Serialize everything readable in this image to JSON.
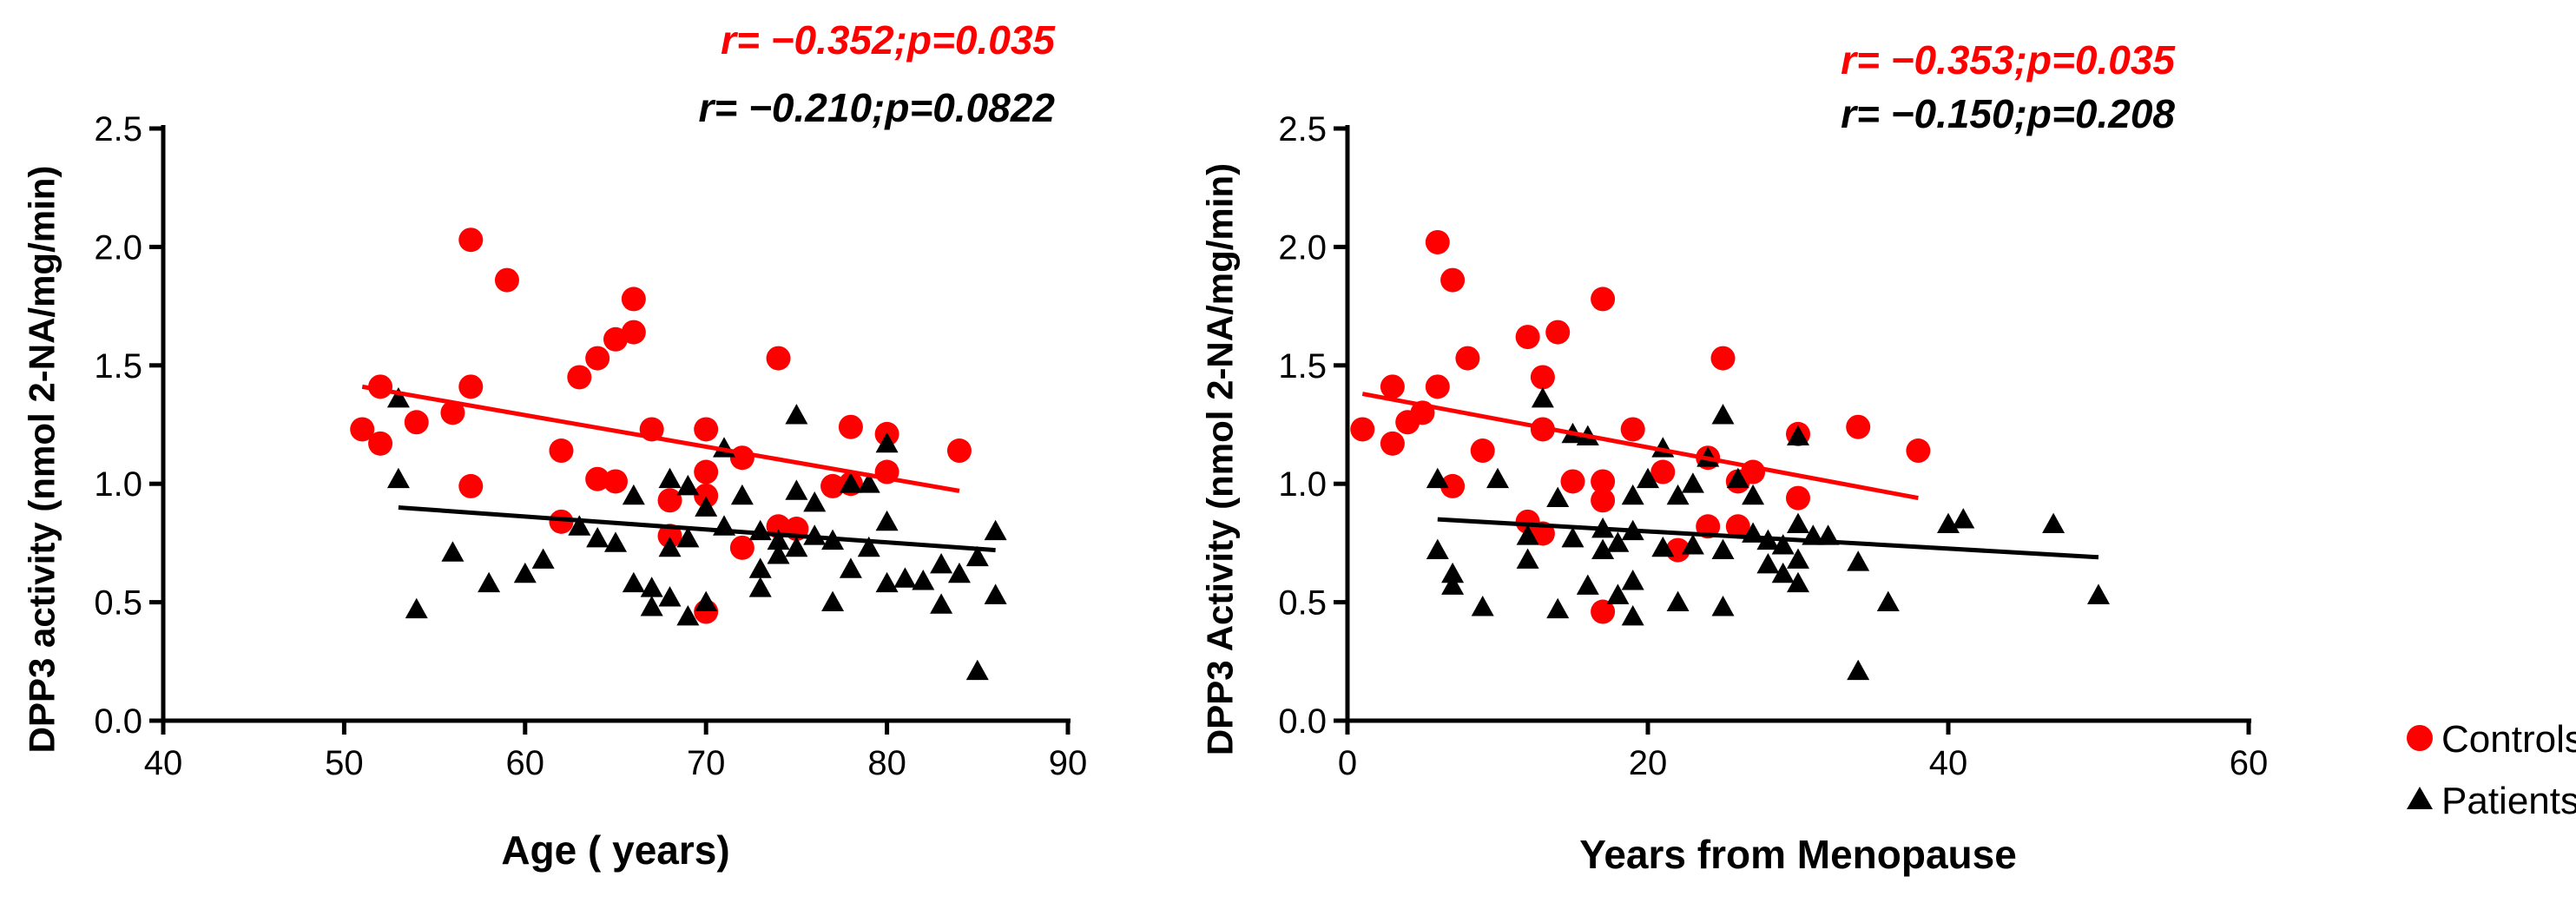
{
  "legend": {
    "controls_label": "Controls",
    "patients_label": "Patients",
    "controls_color": "#ff0000",
    "patients_color": "#000000"
  },
  "chart_data": [
    {
      "type": "scatter",
      "xlabel": "Age ( years)",
      "ylabel": "DPP3 activity (nmol 2-NA/mg/min)",
      "xlim": [
        40,
        90
      ],
      "ylim": [
        0,
        2.5
      ],
      "xticks": [
        "40",
        "50",
        "60",
        "70",
        "80",
        "90"
      ],
      "yticks": [
        "0.0",
        "0.5",
        "1.0",
        "1.5",
        "2.0",
        "2.5"
      ],
      "annotations": [
        {
          "text": "r= −0.352;p=0.035",
          "color": "#ff0000"
        },
        {
          "text": "r= −0.210;p=0.0822",
          "color": "#000000"
        }
      ],
      "series": [
        {
          "name": "Controls",
          "color": "#ff0000",
          "marker": "circle",
          "points": [
            [
              51,
              1.23
            ],
            [
              52,
              1.17
            ],
            [
              52,
              1.41
            ],
            [
              54,
              1.26
            ],
            [
              56,
              1.3
            ],
            [
              57,
              2.03
            ],
            [
              57,
              1.41
            ],
            [
              57,
              0.99
            ],
            [
              59,
              1.86
            ],
            [
              62,
              1.14
            ],
            [
              62,
              0.84
            ],
            [
              63,
              1.45
            ],
            [
              64,
              1.53
            ],
            [
              64,
              1.02
            ],
            [
              65,
              1.61
            ],
            [
              65,
              1.01
            ],
            [
              66,
              1.64
            ],
            [
              66,
              1.78
            ],
            [
              67,
              1.23
            ],
            [
              68,
              0.93
            ],
            [
              68,
              0.78
            ],
            [
              70,
              1.23
            ],
            [
              70,
              1.05
            ],
            [
              70,
              0.95
            ],
            [
              70,
              0.46
            ],
            [
              72,
              1.11
            ],
            [
              72,
              0.73
            ],
            [
              74,
              1.53
            ],
            [
              74,
              0.82
            ],
            [
              75,
              0.81
            ],
            [
              77,
              0.99
            ],
            [
              78,
              1.24
            ],
            [
              78,
              1.0
            ],
            [
              80,
              1.21
            ],
            [
              80,
              1.05
            ],
            [
              84,
              1.14
            ]
          ]
        },
        {
          "name": "Patients",
          "color": "#000000",
          "marker": "triangle",
          "points": [
            [
              53,
              1.36
            ],
            [
              53,
              1.02
            ],
            [
              54,
              0.47
            ],
            [
              56,
              0.71
            ],
            [
              58,
              0.58
            ],
            [
              60,
              0.62
            ],
            [
              61,
              0.68
            ],
            [
              63,
              0.82
            ],
            [
              64,
              0.77
            ],
            [
              65,
              0.75
            ],
            [
              66,
              0.58
            ],
            [
              66,
              0.95
            ],
            [
              67,
              0.56
            ],
            [
              67,
              0.48
            ],
            [
              68,
              0.52
            ],
            [
              68,
              1.02
            ],
            [
              68,
              0.73
            ],
            [
              69,
              0.77
            ],
            [
              69,
              0.44
            ],
            [
              69,
              0.99
            ],
            [
              70,
              0.9
            ],
            [
              70,
              0.5
            ],
            [
              71,
              1.15
            ],
            [
              71,
              0.82
            ],
            [
              72,
              0.95
            ],
            [
              73,
              0.56
            ],
            [
              73,
              0.8
            ],
            [
              73,
              0.64
            ],
            [
              74,
              0.7
            ],
            [
              74,
              0.76
            ],
            [
              75,
              0.73
            ],
            [
              75,
              0.97
            ],
            [
              75,
              1.29
            ],
            [
              76,
              0.92
            ],
            [
              76,
              0.78
            ],
            [
              77,
              0.76
            ],
            [
              77,
              0.5
            ],
            [
              78,
              1.0
            ],
            [
              78,
              0.64
            ],
            [
              79,
              0.73
            ],
            [
              79,
              1.0
            ],
            [
              80,
              0.84
            ],
            [
              80,
              0.58
            ],
            [
              80,
              1.17
            ],
            [
              81,
              0.6
            ],
            [
              82,
              0.59
            ],
            [
              83,
              0.49
            ],
            [
              83,
              0.66
            ],
            [
              84,
              0.62
            ],
            [
              85,
              0.69
            ],
            [
              85,
              0.21
            ],
            [
              86,
              0.8
            ],
            [
              86,
              0.53
            ]
          ]
        }
      ],
      "fit_lines": [
        {
          "series": "Controls",
          "color": "#ff0000",
          "x": [
            51,
            84
          ],
          "y": [
            1.41,
            0.97
          ]
        },
        {
          "series": "Patients",
          "color": "#000000",
          "x": [
            53,
            86
          ],
          "y": [
            0.9,
            0.72
          ]
        }
      ]
    },
    {
      "type": "scatter",
      "xlabel": "Years from Menopause",
      "ylabel": "DPP3 Activity (nmol 2-NA/mg/min)",
      "xlim": [
        0,
        60
      ],
      "ylim": [
        0,
        2.5
      ],
      "xticks": [
        "0",
        "20",
        "40",
        "60"
      ],
      "yticks": [
        "0.0",
        "0.5",
        "1.0",
        "1.5",
        "2.0",
        "2.5"
      ],
      "annotations": [
        {
          "text": "r= −0.353;p=0.035",
          "color": "#ff0000"
        },
        {
          "text": "r= −0.150;p=0.208",
          "color": "#000000"
        }
      ],
      "series": [
        {
          "name": "Controls",
          "color": "#ff0000",
          "marker": "circle",
          "points": [
            [
              1,
              1.23
            ],
            [
              3,
              1.17
            ],
            [
              3,
              1.41
            ],
            [
              4,
              1.26
            ],
            [
              5,
              1.3
            ],
            [
              6,
              2.02
            ],
            [
              6,
              1.41
            ],
            [
              7,
              1.86
            ],
            [
              7,
              0.99
            ],
            [
              8,
              1.53
            ],
            [
              9,
              1.14
            ],
            [
              12,
              1.62
            ],
            [
              12,
              0.84
            ],
            [
              13,
              0.79
            ],
            [
              13,
              1.45
            ],
            [
              13,
              1.23
            ],
            [
              14,
              1.64
            ],
            [
              15,
              1.01
            ],
            [
              17,
              1.78
            ],
            [
              17,
              1.01
            ],
            [
              17,
              0.93
            ],
            [
              17,
              0.46
            ],
            [
              19,
              1.23
            ],
            [
              21,
              1.05
            ],
            [
              22,
              0.72
            ],
            [
              24,
              1.11
            ],
            [
              24,
              0.82
            ],
            [
              25,
              1.53
            ],
            [
              26,
              1.01
            ],
            [
              26,
              0.82
            ],
            [
              27,
              1.05
            ],
            [
              30,
              1.21
            ],
            [
              30,
              0.94
            ],
            [
              34,
              1.24
            ],
            [
              38,
              1.14
            ]
          ]
        },
        {
          "name": "Patients",
          "color": "#000000",
          "marker": "triangle",
          "points": [
            [
              6,
              1.02
            ],
            [
              6,
              0.72
            ],
            [
              7,
              0.62
            ],
            [
              7,
              0.57
            ],
            [
              9,
              0.48
            ],
            [
              10,
              1.02
            ],
            [
              12,
              0.78
            ],
            [
              12,
              0.68
            ],
            [
              13,
              1.36
            ],
            [
              14,
              0.94
            ],
            [
              14,
              0.47
            ],
            [
              15,
              1.21
            ],
            [
              15,
              0.77
            ],
            [
              16,
              1.2
            ],
            [
              16,
              0.57
            ],
            [
              17,
              0.81
            ],
            [
              17,
              0.72
            ],
            [
              18,
              0.75
            ],
            [
              18,
              0.53
            ],
            [
              19,
              0.95
            ],
            [
              19,
              0.8
            ],
            [
              19,
              0.59
            ],
            [
              19,
              0.44
            ],
            [
              20,
              1.02
            ],
            [
              21,
              0.73
            ],
            [
              21,
              1.15
            ],
            [
              22,
              0.95
            ],
            [
              22,
              0.5
            ],
            [
              23,
              1.0
            ],
            [
              23,
              0.74
            ],
            [
              24,
              1.11
            ],
            [
              25,
              0.72
            ],
            [
              25,
              1.29
            ],
            [
              25,
              0.48
            ],
            [
              26,
              1.02
            ],
            [
              27,
              0.95
            ],
            [
              27,
              0.79
            ],
            [
              28,
              0.76
            ],
            [
              28,
              0.66
            ],
            [
              29,
              0.74
            ],
            [
              29,
              0.62
            ],
            [
              30,
              0.83
            ],
            [
              30,
              0.68
            ],
            [
              30,
              1.2
            ],
            [
              30,
              0.58
            ],
            [
              31,
              0.78
            ],
            [
              32,
              0.78
            ],
            [
              34,
              0.67
            ],
            [
              34,
              0.21
            ],
            [
              36,
              0.5
            ],
            [
              40,
              0.83
            ],
            [
              41,
              0.85
            ],
            [
              47,
              0.83
            ],
            [
              50,
              0.53
            ]
          ]
        }
      ],
      "fit_lines": [
        {
          "series": "Controls",
          "color": "#ff0000",
          "x": [
            1,
            38
          ],
          "y": [
            1.38,
            0.94
          ]
        },
        {
          "series": "Patients",
          "color": "#000000",
          "x": [
            6,
            50
          ],
          "y": [
            0.85,
            0.69
          ]
        }
      ]
    }
  ]
}
